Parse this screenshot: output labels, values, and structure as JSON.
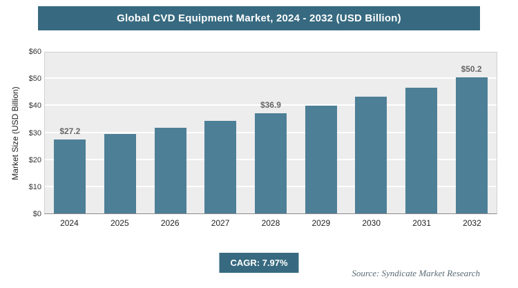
{
  "header": {
    "title": "Global CVD Equipment Market, 2024 - 2032 (USD Billion)"
  },
  "footer": {
    "cagr_label": "CAGR: 7.97%",
    "source": "Source: Syndicate Market Research"
  },
  "chart_data": {
    "type": "bar",
    "title": "Global CVD Equipment Market, 2024 - 2032 (USD Billion)",
    "categories": [
      "2024",
      "2025",
      "2026",
      "2027",
      "2028",
      "2029",
      "2030",
      "2031",
      "2032"
    ],
    "values": [
      27.2,
      29.4,
      31.7,
      34.2,
      36.9,
      39.9,
      43.1,
      46.5,
      50.2
    ],
    "data_labels": [
      "$27.2",
      null,
      null,
      null,
      "$36.9",
      null,
      null,
      null,
      "$50.2"
    ],
    "xlabel": "",
    "ylabel": "Market Size (USD Billion)",
    "ylim": [
      0,
      60
    ],
    "ytick_step": 10,
    "ytick_labels": [
      "$0",
      "$10",
      "$20",
      "$30",
      "$40",
      "$50",
      "$60"
    ],
    "grid": true,
    "legend": "none",
    "bar_color": "#4d7f97",
    "plot_background": "#ededed",
    "banner_color": "#376a80"
  }
}
